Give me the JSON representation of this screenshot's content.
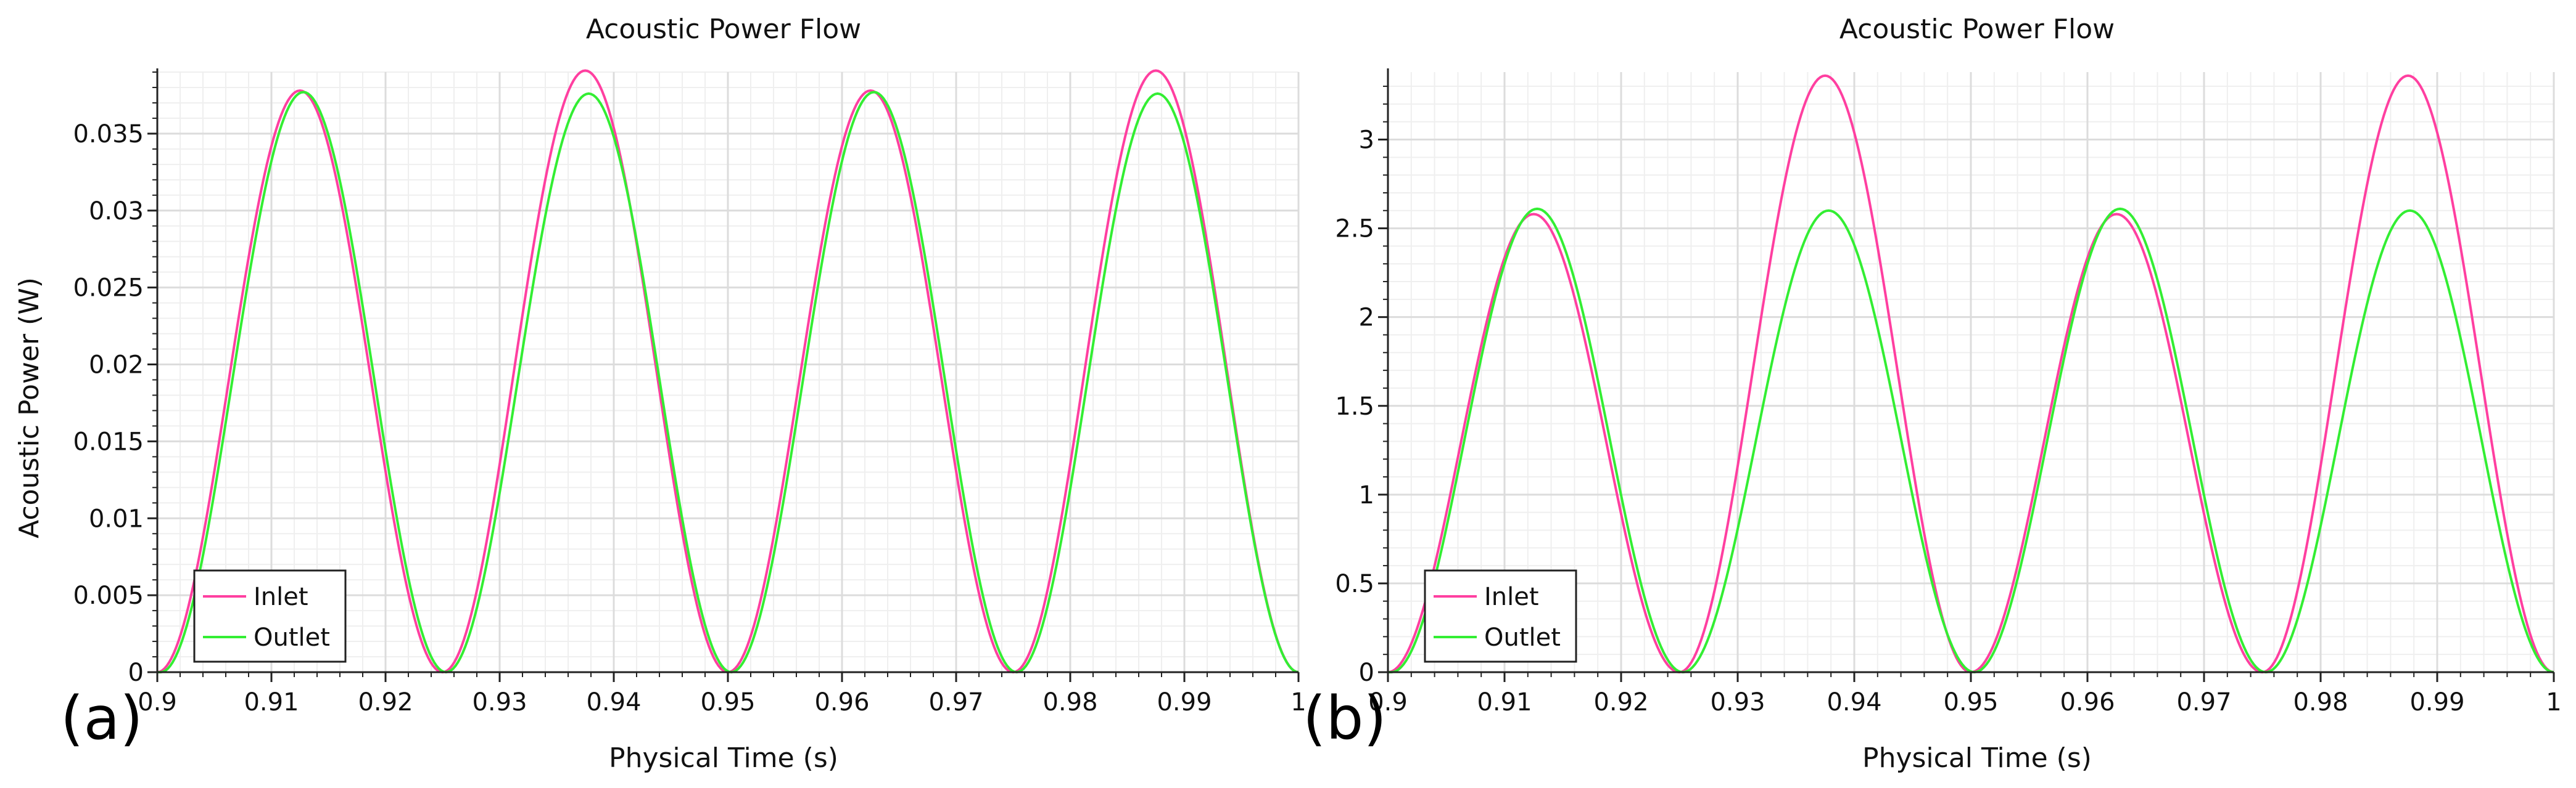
{
  "colors": {
    "inlet": "#ff3fa0",
    "outlet": "#33ee33",
    "grid_major": "#dcdcdc",
    "grid_minor": "#efefef"
  },
  "chart_data": [
    {
      "type": "line",
      "panel_label": "(a)",
      "title": "Acoustic Power Flow",
      "xlabel": "Physical Time (s)",
      "ylabel": "Acoustic Power (W)",
      "xlim": [
        0.9,
        1.0
      ],
      "ylim": [
        0,
        0.039
      ],
      "xticks": [
        0.9,
        0.91,
        0.92,
        0.93,
        0.94,
        0.95,
        0.96,
        0.97,
        0.98,
        0.99,
        1.0
      ],
      "xtick_labels": [
        "0.9",
        "0.91",
        "0.92",
        "0.93",
        "0.94",
        "0.95",
        "0.96",
        "0.97",
        "0.98",
        "0.99",
        "1"
      ],
      "yticks": [
        0,
        0.005,
        0.01,
        0.015,
        0.02,
        0.025,
        0.03,
        0.035
      ],
      "ytick_labels": [
        "0",
        "0.005",
        "0.01",
        "0.015",
        "0.02",
        "0.025",
        "0.03",
        "0.035"
      ],
      "grid": true,
      "legend": "bottom-left",
      "series": [
        {
          "name": "Inlet",
          "color": "#ff3fa0",
          "x": [
            0.9,
            0.9125,
            0.925,
            0.9375,
            0.95,
            0.9625,
            0.975,
            0.9875,
            1.0
          ],
          "y": [
            0,
            0.0378,
            0,
            0.0391,
            0,
            0.0378,
            0,
            0.0391,
            0
          ]
        },
        {
          "name": "Outlet",
          "color": "#33ee33",
          "x": [
            0.9003,
            0.9128,
            0.9253,
            0.9378,
            0.9503,
            0.9628,
            0.9753,
            0.9878,
            1.0
          ],
          "y": [
            0,
            0.0377,
            0,
            0.0376,
            0,
            0.0377,
            0,
            0.0376,
            0
          ]
        }
      ]
    },
    {
      "type": "line",
      "panel_label": "(b)",
      "title": "Acoustic Power Flow",
      "xlabel": "Physical Time (s)",
      "ylabel": "",
      "xlim": [
        0.9,
        1.0
      ],
      "ylim": [
        0,
        3.38
      ],
      "xticks": [
        0.9,
        0.91,
        0.92,
        0.93,
        0.94,
        0.95,
        0.96,
        0.97,
        0.98,
        0.99,
        1.0
      ],
      "xtick_labels": [
        "0.9",
        "0.91",
        "0.92",
        "0.93",
        "0.94",
        "0.95",
        "0.96",
        "0.97",
        "0.98",
        "0.99",
        "1"
      ],
      "yticks": [
        0,
        0.5,
        1,
        1.5,
        2,
        2.5,
        3
      ],
      "ytick_labels": [
        "0",
        "0.5",
        "1",
        "1.5",
        "2",
        "2.5",
        "3"
      ],
      "grid": true,
      "legend": "bottom-left",
      "series": [
        {
          "name": "Inlet",
          "color": "#ff3fa0",
          "x": [
            0.9,
            0.9125,
            0.925,
            0.9375,
            0.95,
            0.9625,
            0.975,
            0.9875,
            1.0
          ],
          "y": [
            0,
            2.58,
            0,
            3.36,
            0,
            2.58,
            0,
            3.36,
            0
          ]
        },
        {
          "name": "Outlet",
          "color": "#33ee33",
          "x": [
            0.9003,
            0.9128,
            0.9253,
            0.9378,
            0.9503,
            0.9628,
            0.9753,
            0.9878,
            1.0
          ],
          "y": [
            0,
            2.61,
            0,
            2.6,
            0,
            2.61,
            0,
            2.6,
            0
          ]
        }
      ]
    }
  ]
}
